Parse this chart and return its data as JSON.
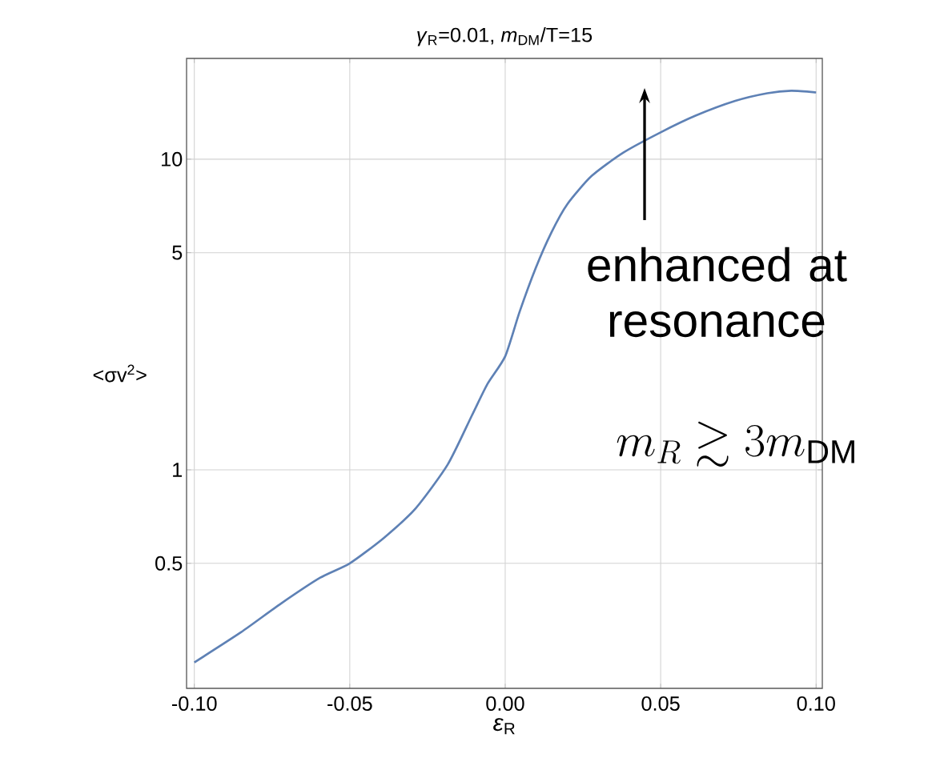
{
  "chart_data": {
    "type": "line",
    "title": "*γ*$_{R}$=0.01, *m*$_{DM}$/T=15",
    "xlabel": "*ε*$_{R}$",
    "ylabel": "<σv$^{2}$>",
    "x": [
      -0.1,
      -0.085,
      -0.0725,
      -0.0596,
      -0.05,
      -0.039,
      -0.0288,
      -0.0185,
      -0.0108,
      -0.0057,
      0,
      0.0046,
      0.0098,
      0.0149,
      0.02,
      0.0278,
      0.038,
      0.05,
      0.0612,
      0.074,
      0.0843,
      0.092,
      0.1
    ],
    "series": [
      {
        "color": "#5e81b5",
        "values": [
          0.24,
          0.3,
          0.369,
          0.449,
          0.5,
          0.604,
          0.752,
          1.04,
          1.49,
          1.89,
          2.32,
          3.22,
          4.46,
          5.82,
          7.17,
          8.83,
          10.5,
          12.2,
          13.8,
          15.4,
          16.3,
          16.6,
          16.4
        ]
      }
    ],
    "xlim": [
      -0.1025,
      0.102
    ],
    "ylim": [
      0.198,
      21.1
    ],
    "log": "y",
    "xticks": [
      {
        "value": -0.1,
        "label": "-0.10"
      },
      {
        "value": -0.05,
        "label": "-0.05"
      },
      {
        "value": 0,
        "label": "0.00"
      },
      {
        "value": 0.05,
        "label": "0.05"
      },
      {
        "value": 0.1,
        "label": "0.10"
      }
    ],
    "yticks": [
      0.5,
      1,
      5,
      10
    ],
    "grid": true,
    "marker": "none",
    "line_style": "solid",
    "annotations": [
      "enhanced at resonance",
      "m_R \\gtrsim 3m_{\\mathrm{DM}}"
    ]
  }
}
